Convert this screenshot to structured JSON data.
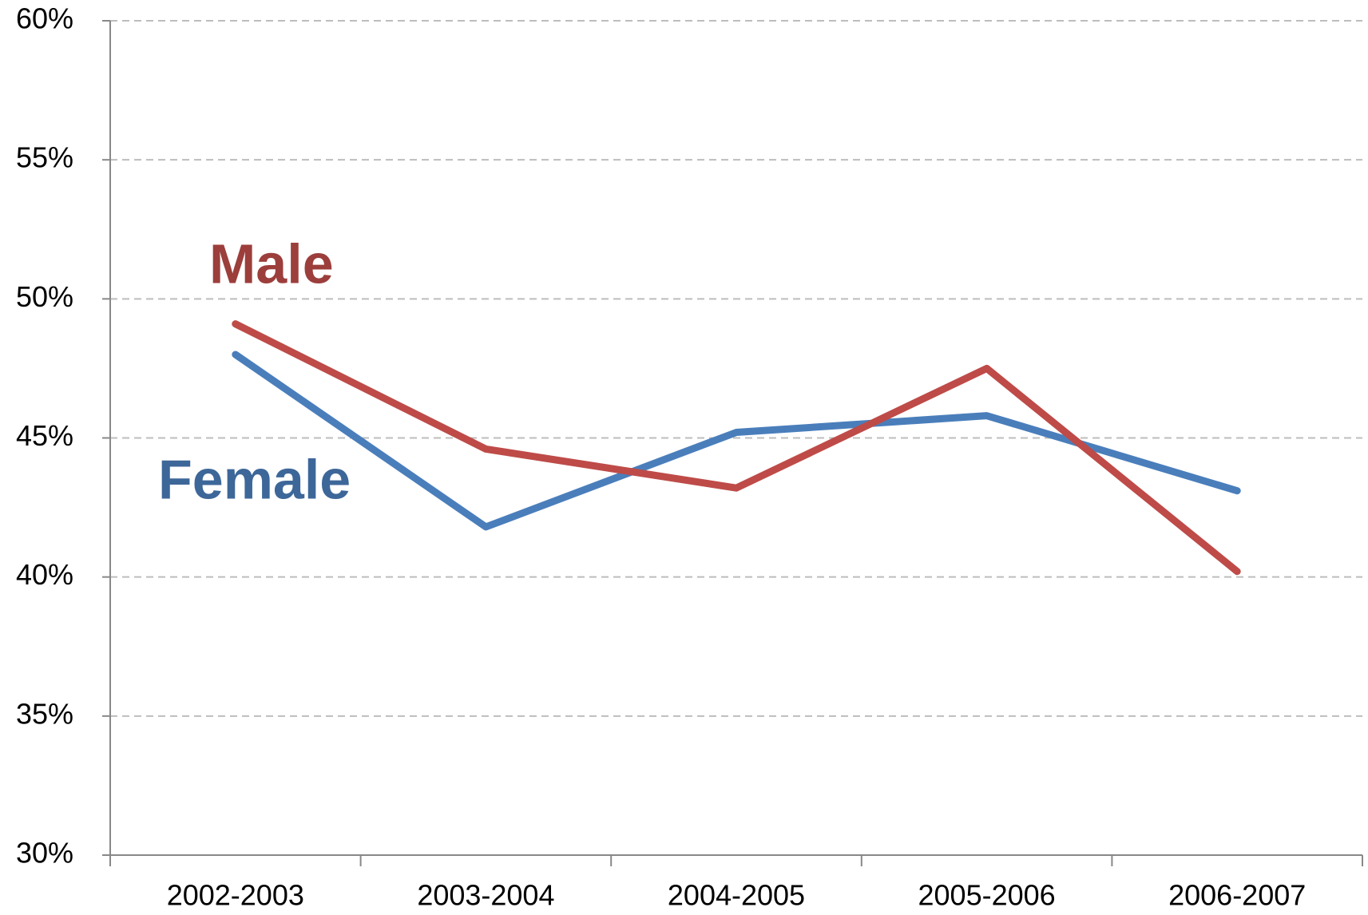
{
  "chart_data": {
    "type": "line",
    "categories": [
      "2002-2003",
      "2003-2004",
      "2004-2005",
      "2005-2006",
      "2006-2007"
    ],
    "series": [
      {
        "name": "Female",
        "color": "#4a7ebb",
        "values": [
          48.0,
          41.8,
          45.2,
          45.8,
          43.1
        ]
      },
      {
        "name": "Male",
        "color": "#be4b48",
        "values": [
          49.1,
          44.6,
          43.2,
          47.5,
          40.2
        ]
      }
    ],
    "ylim": [
      30,
      60
    ],
    "yticks": [
      {
        "value": 30,
        "label": "30%"
      },
      {
        "value": 35,
        "label": "35%"
      },
      {
        "value": 40,
        "label": "40%"
      },
      {
        "value": 45,
        "label": "45%"
      },
      {
        "value": 50,
        "label": "50%"
      },
      {
        "value": 55,
        "label": "55%"
      },
      {
        "value": 60,
        "label": "60%"
      }
    ],
    "grid": true
  }
}
